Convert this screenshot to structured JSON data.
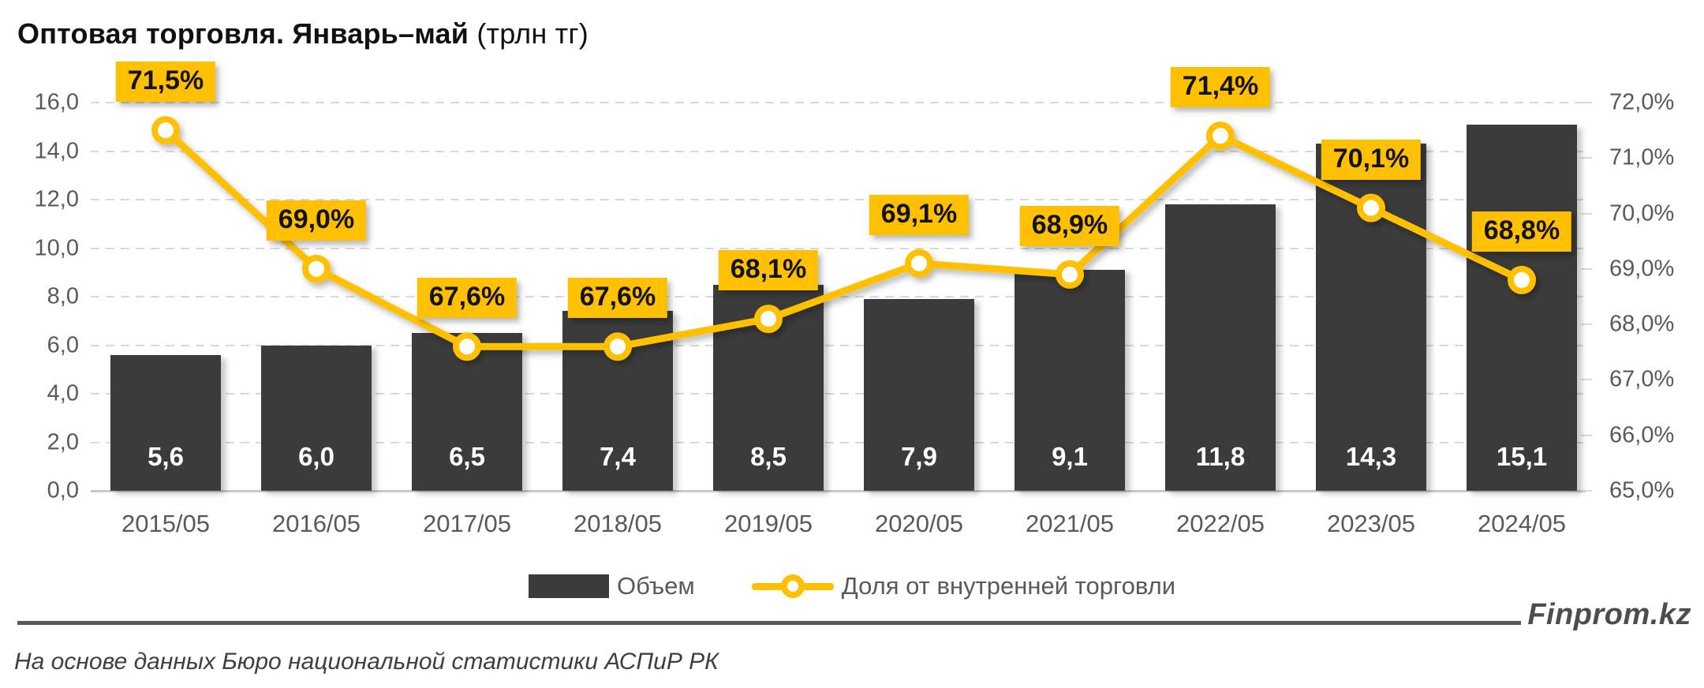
{
  "title": {
    "bold": "Оптовая торговля. Январь–май",
    "normal": "(трлн тг)"
  },
  "chart_data": {
    "type": "bar",
    "combo": "bar+line",
    "title": "Оптовая торговля. Январь–май (трлн тг)",
    "categories": [
      "2015/05",
      "2016/05",
      "2017/05",
      "2018/05",
      "2019/05",
      "2020/05",
      "2021/05",
      "2022/05",
      "2023/05",
      "2024/05"
    ],
    "series": [
      {
        "name": "Объем",
        "type": "bar",
        "axis": "left",
        "unit": "трлн тг",
        "values": [
          5.6,
          6.0,
          6.5,
          7.4,
          8.5,
          7.9,
          9.1,
          11.8,
          14.3,
          15.1
        ],
        "labels": [
          "5,6",
          "6,0",
          "6,5",
          "7,4",
          "8,5",
          "7,9",
          "9,1",
          "11,8",
          "14,3",
          "15,1"
        ],
        "color": "#3b3b3b"
      },
      {
        "name": "Доля от внутренней торговли",
        "type": "line",
        "axis": "right",
        "unit": "%",
        "values": [
          71.5,
          69.0,
          67.6,
          67.6,
          68.1,
          69.1,
          68.9,
          71.4,
          70.1,
          68.8
        ],
        "labels": [
          "71,5%",
          "69,0%",
          "67,6%",
          "67,6%",
          "68,1%",
          "69,1%",
          "68,9%",
          "71,4%",
          "70,1%",
          "68,8%"
        ],
        "color": "#ffc001"
      }
    ],
    "left_axis": {
      "min": 0,
      "max": 16,
      "step": 2,
      "ticks": [
        "0,0",
        "2,0",
        "4,0",
        "6,0",
        "8,0",
        "10,0",
        "12,0",
        "14,0",
        "16,0"
      ]
    },
    "right_axis": {
      "min": 65,
      "max": 72,
      "step": 1,
      "ticks": [
        "65,0%",
        "66,0%",
        "67,0%",
        "68,0%",
        "69,0%",
        "70,0%",
        "71,0%",
        "72,0%"
      ]
    },
    "grid": "horizontal-dashed",
    "legend_position": "bottom"
  },
  "legend": {
    "items": [
      {
        "label": "Объем",
        "swatch": "bar"
      },
      {
        "label": "Доля от внутренней торговли",
        "swatch": "line-marker"
      }
    ]
  },
  "footer": {
    "brand": "Finprom.kz",
    "source": "На основе данных Бюро национальной статистики АСПиР РК"
  },
  "colors": {
    "gold": "#ffc001",
    "bar": "#3b3b3b",
    "axis_text": "#595959",
    "grid": "#d9d9d9",
    "baseline": "#c9c9c9",
    "rule": "#595959",
    "brand_text": "#4d4d4d"
  }
}
